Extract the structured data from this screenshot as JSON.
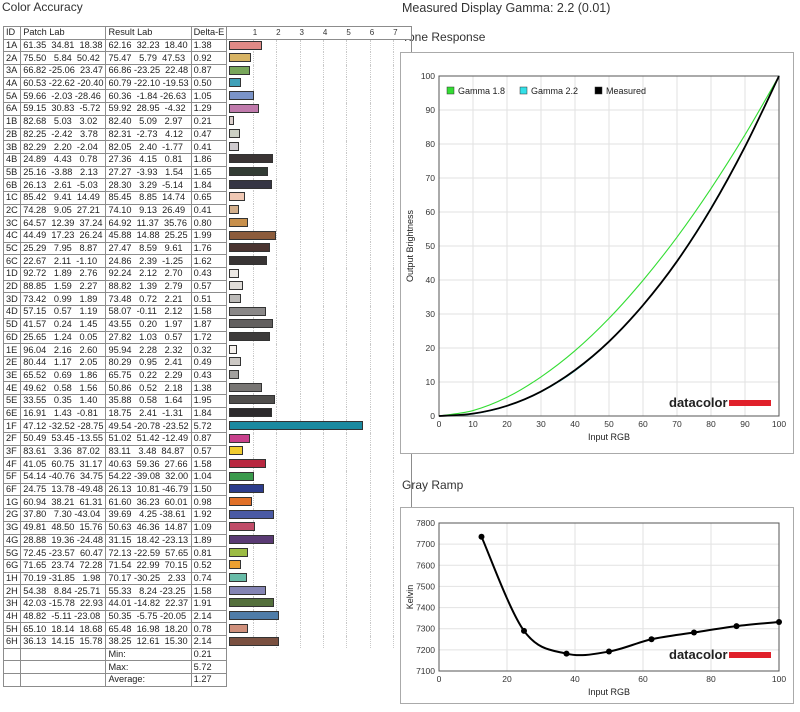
{
  "color_accuracy": {
    "title": "Color Accuracy",
    "headers": {
      "id": "ID",
      "patch": "Patch Lab",
      "result": "Result Lab",
      "delta": "Delta-E"
    },
    "scale_ticks": [
      "1",
      "2",
      "3",
      "4",
      "5",
      "6",
      "7"
    ],
    "rows": [
      {
        "id": "1A",
        "patch": "61.35  34.81  18.38",
        "result": "62.16  32.23  18.40",
        "de": "1.38",
        "color": "#e08a86"
      },
      {
        "id": "2A",
        "patch": "75.50   5.84  50.42",
        "result": "75.47   5.79  47.53",
        "de": "0.92",
        "color": "#d8b464"
      },
      {
        "id": "3A",
        "patch": "66.82 -25.06  23.47",
        "result": "66.86 -23.25  22.48",
        "de": "0.87",
        "color": "#78a65a"
      },
      {
        "id": "4A",
        "patch": "60.53 -22.62 -20.40",
        "result": "60.79 -22.10 -19.53",
        "de": "0.50",
        "color": "#3fa0b8"
      },
      {
        "id": "5A",
        "patch": "59.66  -2.03 -28.46",
        "result": "60.36  -1.84 -26.63",
        "de": "1.05",
        "color": "#7b94c8"
      },
      {
        "id": "6A",
        "patch": "59.15  30.83  -5.72",
        "result": "59.92  28.95  -4.32",
        "result2": "",
        "de": "1.29",
        "color": "#c07aac"
      },
      {
        "id": "1B",
        "patch": "82.68   5.03   3.02",
        "result": "82.40   5.09   2.97",
        "de": "0.21",
        "color": "#dcd0cc"
      },
      {
        "id": "2B",
        "patch": "82.25  -2.42   3.78",
        "result": "82.31  -2.73   4.12",
        "de": "0.47",
        "color": "#ccd0c4"
      },
      {
        "id": "3B",
        "patch": "82.29   2.20  -2.04",
        "result": "82.05   2.40  -1.77",
        "de": "0.41",
        "color": "#d0ccd0"
      },
      {
        "id": "4B",
        "patch": "24.89   4.43   0.78",
        "result": "27.36   4.15   0.81",
        "de": "1.86",
        "color": "#3a3434"
      },
      {
        "id": "5B",
        "patch": "25.16  -3.88   2.13",
        "result": "27.27  -3.93   1.54",
        "de": "1.65",
        "color": "#323c34"
      },
      {
        "id": "6B",
        "patch": "26.13   2.61  -5.03",
        "result": "28.30   3.29  -5.14",
        "de": "1.84",
        "color": "#363644"
      },
      {
        "id": "1C",
        "patch": "85.42   9.41  14.49",
        "result": "85.45   8.85  14.74",
        "de": "0.65",
        "color": "#f0c8b4"
      },
      {
        "id": "2C",
        "patch": "74.28   9.05  27.21",
        "result": "74.10   9.13  26.49",
        "de": "0.41",
        "color": "#d4b08c"
      },
      {
        "id": "3C",
        "patch": "64.57  12.39  37.24",
        "result": "64.92  11.37  35.76",
        "de": "0.80",
        "color": "#c8904c"
      },
      {
        "id": "4C",
        "patch": "44.49  17.23  26.24",
        "result": "45.88  14.88  25.25",
        "de": "1.99",
        "color": "#8c5c3c"
      },
      {
        "id": "5C",
        "patch": "25.29   7.95   8.87",
        "result": "27.47   8.59   9.61",
        "de": "1.76",
        "color": "#4a3430"
      },
      {
        "id": "6C",
        "patch": "22.67   2.11  -1.10",
        "result": "24.86   2.39  -1.25",
        "de": "1.62",
        "color": "#383434"
      },
      {
        "id": "1D",
        "patch": "92.72   1.89   2.76",
        "result": "92.24   2.12   2.70",
        "de": "0.43",
        "color": "#ece8e4"
      },
      {
        "id": "2D",
        "patch": "88.85   1.59   2.27",
        "result": "88.82   1.39   2.79",
        "de": "0.57",
        "color": "#e0dcd8"
      },
      {
        "id": "3D",
        "patch": "73.42   0.99   1.89",
        "result": "73.48   0.72   2.21",
        "de": "0.51",
        "color": "#bcbab8"
      },
      {
        "id": "4D",
        "patch": "57.15   0.57   1.19",
        "result": "58.07  -0.11   2.12",
        "de": "1.58",
        "color": "#8a8888"
      },
      {
        "id": "5D",
        "patch": "41.57   0.24   1.45",
        "result": "43.55   0.20   1.97",
        "de": "1.87",
        "color": "#625f5e"
      },
      {
        "id": "6D",
        "patch": "25.65   1.24   0.05",
        "result": "27.82   1.03   0.57",
        "de": "1.72",
        "color": "#3c3a3a"
      },
      {
        "id": "1E",
        "patch": "96.04   2.16   2.60",
        "result": "95.94   2.28   2.32",
        "de": "0.32",
        "color": "#f6f2ee"
      },
      {
        "id": "2E",
        "patch": "80.44   1.17   2.05",
        "result": "80.29   0.95   2.41",
        "de": "0.49",
        "color": "#ccc8c4"
      },
      {
        "id": "3E",
        "patch": "65.52   0.69   1.86",
        "result": "65.75   0.22   2.29",
        "de": "0.43",
        "color": "#a2a09e"
      },
      {
        "id": "4E",
        "patch": "49.62   0.58   1.56",
        "result": "50.86   0.52   2.18",
        "de": "1.38",
        "color": "#787674"
      },
      {
        "id": "5E",
        "patch": "33.55   0.35   1.40",
        "result": "35.88   0.58   1.64",
        "de": "1.95",
        "color": "#504e4c"
      },
      {
        "id": "6E",
        "patch": "16.91   1.43  -0.81",
        "result": "18.75   2.41  -1.31",
        "de": "1.84",
        "color": "#2c2a2c"
      },
      {
        "id": "1F",
        "patch": "47.12 -32.52 -28.75",
        "result": "49.54 -20.78 -23.52",
        "de": "5.72",
        "color": "#1a8aa0"
      },
      {
        "id": "2F",
        "patch": "50.49  53.45 -13.55",
        "result": "51.02  51.42 -12.49",
        "de": "0.87",
        "color": "#c8408c"
      },
      {
        "id": "3F",
        "patch": "83.61   3.36  87.02",
        "result": "83.11   3.48  84.87",
        "de": "0.57",
        "color": "#f0cc30"
      },
      {
        "id": "4F",
        "patch": "41.05  60.75  31.17",
        "result": "40.63  59.36  27.66",
        "de": "1.58",
        "color": "#b82840"
      },
      {
        "id": "5F",
        "patch": "54.14 -40.76  34.75",
        "result": "54.22 -39.08  32.00",
        "de": "1.04",
        "color": "#3a9a4c"
      },
      {
        "id": "6F",
        "patch": "24.75  13.78 -49.48",
        "result": "26.13  10.81 -46.79",
        "de": "1.50",
        "color": "#2c3c8c"
      },
      {
        "id": "1G",
        "patch": "60.94  38.21  61.31",
        "result": "61.60  36.23  60.01",
        "de": "0.98",
        "color": "#e07028"
      },
      {
        "id": "2G",
        "patch": "37.80   7.30 -43.04",
        "result": "39.69   4.25 -38.61",
        "de": "1.92",
        "color": "#4a5aa4"
      },
      {
        "id": "3G",
        "patch": "49.81  48.50  15.76",
        "result": "50.63  46.36  14.87",
        "de": "1.09",
        "color": "#c04c68"
      },
      {
        "id": "4G",
        "patch": "28.88  19.36 -24.48",
        "result": "31.15  18.42 -23.13",
        "de": "1.89",
        "color": "#5a3a74"
      },
      {
        "id": "5G",
        "patch": "72.45 -23.57  60.47",
        "result": "72.13 -22.59  57.65",
        "de": "0.81",
        "color": "#9cbc44"
      },
      {
        "id": "6G",
        "patch": "71.65  23.74  72.28",
        "result": "71.54  22.99  70.15",
        "de": "0.52",
        "color": "#eca030"
      },
      {
        "id": "1H",
        "patch": "70.19 -31.85   1.98",
        "result": "70.17 -30.25   2.33",
        "de": "0.74",
        "color": "#68bca8"
      },
      {
        "id": "2H",
        "patch": "54.38   8.84 -25.71",
        "result": "55.33   8.24 -23.25",
        "de": "1.58",
        "color": "#8484b4"
      },
      {
        "id": "3H",
        "patch": "42.03 -15.78  22.93",
        "result": "44.01 -14.82  22.37",
        "de": "1.91",
        "color": "#54703c"
      },
      {
        "id": "4H",
        "patch": "48.82  -5.11 -23.08",
        "result": "50.35  -5.75 -20.05",
        "de": "2.14",
        "color": "#4e7ca8"
      },
      {
        "id": "5H",
        "patch": "65.10  18.14  18.68",
        "result": "65.48  16.98  18.20",
        "de": "0.78",
        "color": "#d0907c"
      },
      {
        "id": "6H",
        "patch": "36.13  14.15  15.78",
        "result": "38.25  12.61  15.30",
        "de": "2.14",
        "color": "#7a5040"
      }
    ],
    "summary": [
      {
        "label": "Min:",
        "value": "0.21"
      },
      {
        "label": "Max:",
        "value": "5.72"
      },
      {
        "label": "Average:",
        "value": "1.27"
      }
    ]
  },
  "gamma_title": "Measured Display Gamma: 2.2 (0.01)",
  "chart_data": [
    {
      "type": "line",
      "title": "Tone Response",
      "xlabel": "Input RGB",
      "ylabel": "Output Brightness",
      "xlim": [
        0,
        100
      ],
      "ylim": [
        0,
        100
      ],
      "x_ticks": [
        0,
        10,
        20,
        30,
        40,
        50,
        60,
        70,
        80,
        90,
        100
      ],
      "y_ticks": [
        0,
        10,
        20,
        30,
        40,
        50,
        60,
        70,
        80,
        90,
        100
      ],
      "grid": true,
      "legend": "top-left",
      "series": [
        {
          "name": "Gamma 1.8",
          "color": "#33dd33",
          "x": [
            0,
            10,
            20,
            30,
            40,
            50,
            60,
            70,
            80,
            90,
            100
          ],
          "y": [
            0,
            1.6,
            5.5,
            11.5,
            19.2,
            28.7,
            39.9,
            52.6,
            66.9,
            82.7,
            100
          ]
        },
        {
          "name": "Gamma 2.2",
          "color": "#33e0e8",
          "x": [
            0,
            10,
            20,
            30,
            40,
            50,
            60,
            70,
            80,
            90,
            100
          ],
          "y": [
            0,
            0.6,
            2.9,
            7.1,
            13.3,
            21.8,
            32.5,
            45.6,
            61.2,
            79.3,
            100
          ]
        },
        {
          "name": "Measured",
          "color": "#000000",
          "x": [
            0,
            10,
            20,
            30,
            40,
            50,
            60,
            70,
            80,
            90,
            100
          ],
          "y": [
            0,
            0.7,
            3.0,
            7.2,
            13.5,
            21.9,
            32.6,
            45.5,
            61.0,
            79.2,
            100
          ]
        }
      ],
      "brand": "datacolor"
    },
    {
      "type": "line",
      "title": "Gray Ramp",
      "xlabel": "Input RGB",
      "ylabel": "Kelvin",
      "xlim": [
        0,
        100
      ],
      "ylim": [
        7100,
        7800
      ],
      "x_ticks": [
        0,
        20,
        40,
        60,
        80,
        100
      ],
      "y_ticks": [
        7100,
        7200,
        7300,
        7400,
        7500,
        7600,
        7700,
        7800
      ],
      "grid": true,
      "series": [
        {
          "name": "",
          "color": "#000000",
          "x": [
            12.5,
            25,
            37.5,
            50,
            62.5,
            75,
            87.5,
            100
          ],
          "y": [
            7735,
            7290,
            7182,
            7192,
            7250,
            7282,
            7312,
            7332
          ]
        }
      ],
      "brand": "datacolor"
    }
  ]
}
